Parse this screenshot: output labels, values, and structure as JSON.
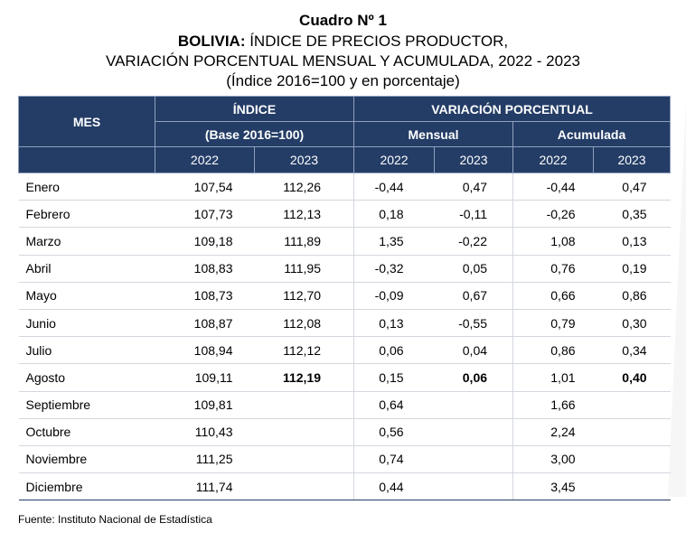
{
  "title": {
    "line1": "Cuadro Nº 1",
    "line2_bold": "BOLIVIA:",
    "line2_rest": " ÍNDICE DE PRECIOS PRODUCTOR,",
    "line3": "VARIACIÓN PORCENTUAL MENSUAL Y ACUMULADA, 2022 - 2023",
    "line4": "(Índice 2016=100 y en porcentaje)"
  },
  "header": {
    "mes": "MES",
    "indice": "ÍNDICE",
    "base": "(Base 2016=100)",
    "variacion": "VARIACIÓN PORCENTUAL",
    "mensual": "Mensual",
    "acumulada": "Acumulada",
    "years": [
      "2022",
      "2023",
      "2022",
      "2023",
      "2022",
      "2023"
    ]
  },
  "rows": [
    {
      "mes": "Enero",
      "i22": "107,54",
      "i23": "112,26",
      "m22": "-0,44",
      "m23": "0,47",
      "a22": "-0,44",
      "a23": "0,47"
    },
    {
      "mes": "Febrero",
      "i22": "107,73",
      "i23": "112,13",
      "m22": "0,18",
      "m23": "-0,11",
      "a22": "-0,26",
      "a23": "0,35"
    },
    {
      "mes": "Marzo",
      "i22": "109,18",
      "i23": "111,89",
      "m22": "1,35",
      "m23": "-0,22",
      "a22": "1,08",
      "a23": "0,13"
    },
    {
      "mes": "Abril",
      "i22": "108,83",
      "i23": "111,95",
      "m22": "-0,32",
      "m23": "0,05",
      "a22": "0,76",
      "a23": "0,19"
    },
    {
      "mes": "Mayo",
      "i22": "108,73",
      "i23": "112,70",
      "m22": "-0,09",
      "m23": "0,67",
      "a22": "0,66",
      "a23": "0,86"
    },
    {
      "mes": "Junio",
      "i22": "108,87",
      "i23": "112,08",
      "m22": "0,13",
      "m23": "-0,55",
      "a22": "0,79",
      "a23": "0,30"
    },
    {
      "mes": "Julio",
      "i22": "108,94",
      "i23": "112,12",
      "m22": "0,06",
      "m23": "0,04",
      "a22": "0,86",
      "a23": "0,34"
    },
    {
      "mes": "Agosto",
      "i22": "109,11",
      "i23": "112,19",
      "m22": "0,15",
      "m23": "0,06",
      "a22": "1,01",
      "a23": "0,40"
    },
    {
      "mes": "Septiembre",
      "i22": "109,81",
      "i23": "",
      "m22": "0,64",
      "m23": "",
      "a22": "1,66",
      "a23": ""
    },
    {
      "mes": "Octubre",
      "i22": "110,43",
      "i23": "",
      "m22": "0,56",
      "m23": "",
      "a22": "2,24",
      "a23": ""
    },
    {
      "mes": "Noviembre",
      "i22": "111,25",
      "i23": "",
      "m22": "0,74",
      "m23": "",
      "a22": "3,00",
      "a23": ""
    },
    {
      "mes": "Diciembre",
      "i22": "111,74",
      "i23": "",
      "m22": "0,44",
      "m23": "",
      "a22": "3,45",
      "a23": ""
    }
  ],
  "bold_row_index": 7,
  "source": "Fuente: Instituto Nacional de Estadística",
  "colors": {
    "header_bg": "#243d66",
    "header_text": "#ffffff"
  }
}
